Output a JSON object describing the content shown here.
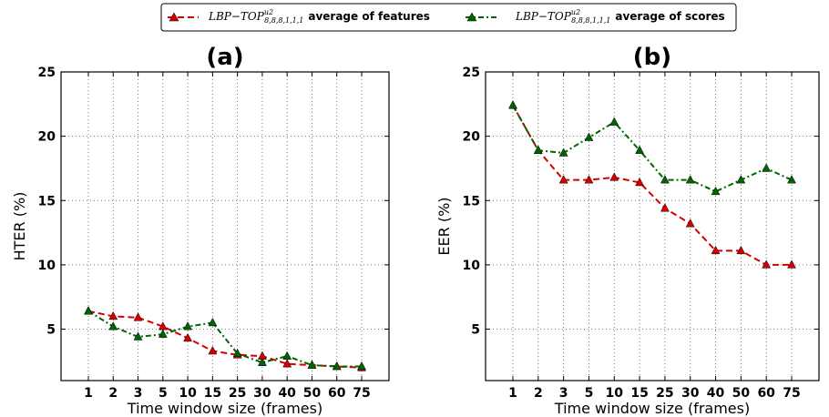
{
  "legend": {
    "entries": [
      {
        "math": "LBP−TOP",
        "sup": "u2",
        "sub": "8,8,8,1,1,1",
        "text": "average of features",
        "color": "#d40000",
        "style": "dashed"
      },
      {
        "math": "LBP−TOP",
        "sup": "u2",
        "sub": "8,8,8,1,1,1",
        "text": "average of scores",
        "color": "#006400",
        "style": "dashdot"
      }
    ]
  },
  "chart_data": [
    {
      "type": "line",
      "title": "(a)",
      "xlabel": "Time window size (frames)",
      "ylabel": "HTER (%)",
      "categories": [
        "1",
        "2",
        "3",
        "5",
        "10",
        "15",
        "25",
        "30",
        "40",
        "50",
        "60",
        "75"
      ],
      "ylim": [
        1,
        25
      ],
      "yticks": [
        5,
        10,
        15,
        20,
        25
      ],
      "grid": true,
      "series": [
        {
          "name": "average of features",
          "color": "#d40000",
          "values": [
            6.4,
            6.0,
            5.9,
            5.2,
            4.3,
            3.3,
            3.0,
            2.9,
            2.3,
            2.2,
            2.1,
            2.0
          ]
        },
        {
          "name": "average of scores",
          "color": "#006400",
          "values": [
            6.4,
            5.2,
            4.4,
            4.6,
            5.2,
            5.5,
            3.1,
            2.4,
            2.9,
            2.2,
            2.1,
            2.1
          ]
        }
      ]
    },
    {
      "type": "line",
      "title": "(b)",
      "xlabel": "Time window size (frames)",
      "ylabel": "EER (%)",
      "categories": [
        "1",
        "2",
        "3",
        "5",
        "10",
        "15",
        "25",
        "30",
        "40",
        "50",
        "60",
        "75"
      ],
      "ylim": [
        1,
        25
      ],
      "yticks": [
        5,
        10,
        15,
        20,
        25
      ],
      "grid": true,
      "series": [
        {
          "name": "average of features",
          "color": "#d40000",
          "values": [
            22.4,
            18.9,
            16.6,
            16.6,
            16.8,
            16.4,
            14.4,
            13.2,
            11.1,
            11.1,
            10.0,
            10.0
          ]
        },
        {
          "name": "average of scores",
          "color": "#006400",
          "values": [
            22.4,
            18.9,
            18.7,
            19.9,
            21.1,
            18.9,
            16.6,
            16.6,
            15.7,
            16.6,
            17.5,
            16.6
          ]
        }
      ]
    }
  ]
}
